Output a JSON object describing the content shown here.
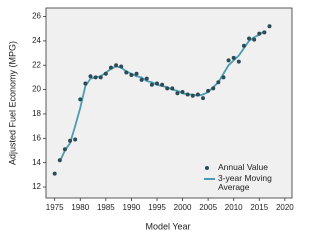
{
  "chart_data": {
    "type": "scatter",
    "x_label": "Model Year",
    "y_label": "Adjusted Fuel Economy (MPG)",
    "xlim": [
      1973.3,
      2021.4
    ],
    "ylim": [
      11.1,
      26.7
    ],
    "xticks": [
      1975,
      1980,
      1985,
      1990,
      1995,
      2000,
      2005,
      2010,
      2015,
      2020
    ],
    "yticks": [
      12,
      14,
      16,
      18,
      20,
      22,
      24,
      26
    ],
    "background": "#f0f0f0",
    "series": [
      {
        "name": "Annual Value",
        "type": "scatter",
        "color": "#2c4b56",
        "x": [
          1975,
          1976,
          1977,
          1978,
          1979,
          1980,
          1981,
          1982,
          1983,
          1984,
          1985,
          1986,
          1987,
          1988,
          1989,
          1990,
          1991,
          1992,
          1993,
          1994,
          1995,
          1996,
          1997,
          1998,
          1999,
          2000,
          2001,
          2002,
          2003,
          2004,
          2005,
          2006,
          2007,
          2008,
          2009,
          2010,
          2011,
          2012,
          2013,
          2014,
          2015,
          2016,
          2017
        ],
        "values": [
          13.1,
          14.2,
          15.1,
          15.8,
          15.9,
          19.2,
          20.5,
          21.1,
          21.0,
          21.0,
          21.3,
          21.8,
          22.0,
          21.9,
          21.4,
          21.2,
          21.3,
          20.8,
          20.9,
          20.4,
          20.5,
          20.4,
          20.1,
          20.1,
          19.7,
          19.8,
          19.6,
          19.5,
          19.6,
          19.3,
          19.9,
          20.1,
          20.6,
          21.0,
          22.4,
          22.6,
          22.3,
          23.6,
          24.2,
          24.1,
          24.6,
          24.7,
          25.2
        ]
      },
      {
        "name": "3-year Moving Average",
        "type": "line",
        "color": "#4d9cb1",
        "x": [
          1976,
          1977,
          1978,
          1979,
          1980,
          1981,
          1982,
          1983,
          1984,
          1985,
          1986,
          1987,
          1988,
          1989,
          1990,
          1991,
          1992,
          1993,
          1994,
          1995,
          1996,
          1997,
          1998,
          1999,
          2000,
          2001,
          2002,
          2003,
          2004,
          2005,
          2006,
          2007,
          2008,
          2009,
          2010,
          2011,
          2012,
          2013,
          2014,
          2015,
          2016
        ],
        "values": [
          14.1,
          15.0,
          15.6,
          17.0,
          18.5,
          20.3,
          20.9,
          21.0,
          21.1,
          21.4,
          21.7,
          21.9,
          21.8,
          21.5,
          21.3,
          21.1,
          21.0,
          20.7,
          20.6,
          20.4,
          20.3,
          20.2,
          20.0,
          19.9,
          19.7,
          19.6,
          19.6,
          19.5,
          19.6,
          19.8,
          20.2,
          20.6,
          21.3,
          22.0,
          22.4,
          22.8,
          23.4,
          24.0,
          24.3,
          24.5,
          24.8
        ]
      }
    ]
  }
}
